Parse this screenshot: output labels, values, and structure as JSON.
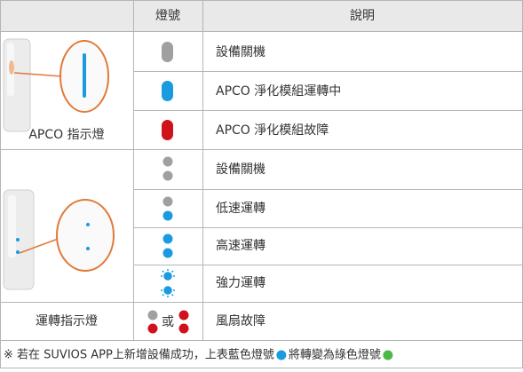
{
  "table": {
    "header": [
      "燈號",
      "說明"
    ],
    "groups": [
      {
        "label": "APCO 指示燈",
        "rows": [
          "設備關機",
          "APCO 淨化模組運轉中",
          "APCO 淨化模組故障"
        ]
      },
      {
        "label": "運轉指示燈",
        "rows": [
          "設備關機",
          "低速運轉",
          "高速運轉",
          "強力運轉",
          "風扇故障"
        ],
        "or_text": "或"
      }
    ]
  },
  "footnote": {
    "before": "※ 若在 SUVIOS APP上新增設備成功，上表藍色燈號",
    "after": "將轉變為綠色燈號"
  }
}
